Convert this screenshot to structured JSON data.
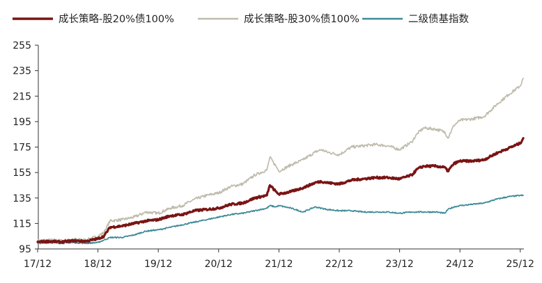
{
  "chart_data": {
    "type": "line",
    "title": "",
    "xlabel": "",
    "ylabel": "",
    "ylim": [
      95,
      255
    ],
    "yticks": [
      95,
      115,
      135,
      155,
      175,
      195,
      215,
      235,
      255
    ],
    "xlim": [
      0,
      8.05
    ],
    "xticks": [
      {
        "label": "17/12",
        "x": 0
      },
      {
        "label": "18/12",
        "x": 1
      },
      {
        "label": "19/12",
        "x": 2
      },
      {
        "label": "20/12",
        "x": 3
      },
      {
        "label": "21/12",
        "x": 4
      },
      {
        "label": "22/12",
        "x": 5
      },
      {
        "label": "23/12",
        "x": 6
      },
      {
        "label": "24/12",
        "x": 7
      },
      {
        "label": "25/12",
        "x": 8
      }
    ],
    "legend_position": "top",
    "series": [
      {
        "name": "成长策略-股20%债100%",
        "color": "#7a1414",
        "width": 3.2,
        "x": [
          0,
          0.2,
          0.4,
          0.6,
          0.8,
          1.0,
          1.1,
          1.2,
          1.4,
          1.6,
          1.8,
          2.0,
          2.2,
          2.4,
          2.6,
          2.8,
          3.0,
          3.2,
          3.4,
          3.6,
          3.8,
          3.85,
          3.95,
          4.0,
          4.2,
          4.4,
          4.6,
          4.7,
          4.8,
          5.0,
          5.2,
          5.4,
          5.6,
          5.8,
          6.0,
          6.2,
          6.3,
          6.4,
          6.6,
          6.75,
          6.8,
          6.9,
          7.0,
          7.2,
          7.4,
          7.6,
          7.8,
          8.0,
          8.05
        ],
        "values": [
          100.5,
          101,
          100.5,
          101.5,
          101,
          103,
          105,
          112,
          113,
          115,
          117,
          118,
          121,
          122,
          125,
          126,
          127,
          130,
          131,
          135,
          137,
          145,
          140,
          138,
          140,
          143,
          147,
          148,
          147,
          146,
          149,
          150,
          151,
          151,
          150,
          153,
          158,
          160,
          160,
          159,
          156,
          162,
          164,
          164,
          165,
          170,
          174,
          178,
          182
        ]
      },
      {
        "name": "成长策略-股30%债100%",
        "color": "#bfbcac",
        "width": 1.7,
        "x": [
          0,
          0.2,
          0.4,
          0.6,
          0.8,
          1.0,
          1.1,
          1.2,
          1.4,
          1.6,
          1.8,
          2.0,
          2.2,
          2.4,
          2.6,
          2.8,
          3.0,
          3.2,
          3.4,
          3.6,
          3.8,
          3.85,
          3.95,
          4.0,
          4.2,
          4.4,
          4.6,
          4.7,
          4.8,
          5.0,
          5.2,
          5.4,
          5.6,
          5.8,
          6.0,
          6.2,
          6.3,
          6.4,
          6.6,
          6.75,
          6.8,
          6.9,
          7.0,
          7.2,
          7.4,
          7.6,
          7.8,
          8.0,
          8.05
        ],
        "values": [
          101.5,
          102,
          101.5,
          102.5,
          102,
          105,
          108,
          117,
          118,
          120,
          124,
          123,
          127,
          129,
          134,
          137,
          139,
          144,
          146,
          153,
          157,
          167,
          160,
          156,
          161,
          165,
          171,
          173,
          171,
          169,
          175,
          176,
          177,
          176,
          173,
          179,
          186,
          190,
          189,
          187,
          182,
          192,
          196,
          197,
          199,
          208,
          216,
          223,
          229
        ]
      },
      {
        "name": "二级债基指数",
        "color": "#3d8a96",
        "width": 1.7,
        "x": [
          0,
          0.2,
          0.4,
          0.6,
          0.8,
          1.0,
          1.1,
          1.2,
          1.4,
          1.6,
          1.8,
          2.0,
          2.2,
          2.4,
          2.6,
          2.8,
          3.0,
          3.2,
          3.4,
          3.6,
          3.8,
          3.85,
          3.95,
          4.0,
          4.2,
          4.4,
          4.6,
          4.7,
          4.8,
          5.0,
          5.2,
          5.4,
          5.6,
          5.8,
          6.0,
          6.2,
          6.3,
          6.4,
          6.6,
          6.75,
          6.8,
          6.9,
          7.0,
          7.2,
          7.4,
          7.6,
          7.8,
          8.0,
          8.05
        ],
        "values": [
          99.5,
          100,
          99.5,
          100,
          99.5,
          100,
          102,
          104,
          104,
          106,
          109,
          110,
          112,
          114,
          116,
          118,
          120,
          122,
          123,
          125,
          127,
          129,
          128,
          129,
          127,
          124,
          128,
          127,
          126,
          125,
          125,
          124,
          124,
          124,
          123,
          124,
          124,
          124,
          124,
          123,
          126,
          128,
          129,
          130,
          131,
          134,
          136,
          137,
          137
        ]
      }
    ]
  }
}
